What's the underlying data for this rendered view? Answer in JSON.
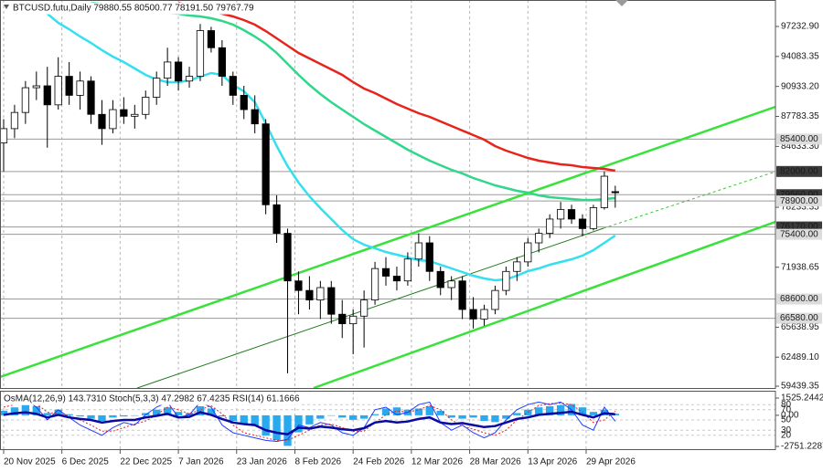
{
  "chart_data": [
    {
      "type": "candlestick",
      "title": "BTCUSD.futu,Daily  79880.55 80500.77 78191.50 79767.79",
      "x": [
        "2025-11-20",
        "2025-11-23",
        "2025-11-26",
        "2025-11-29",
        "2025-12-02",
        "2025-12-05",
        "2025-12-08",
        "2025-12-11",
        "2025-12-14",
        "2025-12-17",
        "2025-12-20",
        "2025-12-23",
        "2025-12-26",
        "2025-12-29",
        "2026-01-01",
        "2026-01-04",
        "2026-01-07",
        "2026-01-10",
        "2026-01-13",
        "2026-01-16",
        "2026-01-19",
        "2026-01-22",
        "2026-01-25",
        "2026-01-28",
        "2026-01-31",
        "2026-02-03",
        "2026-02-06",
        "2026-02-09",
        "2026-02-12",
        "2026-02-15",
        "2026-02-18",
        "2026-02-21",
        "2026-02-24",
        "2026-02-27",
        "2026-03-02",
        "2026-03-05",
        "2026-03-08",
        "2026-03-11",
        "2026-03-14",
        "2026-03-17",
        "2026-03-20",
        "2026-03-23",
        "2026-03-26",
        "2026-03-29",
        "2026-04-01",
        "2026-04-04",
        "2026-04-07",
        "2026-04-10",
        "2026-04-13",
        "2026-04-16",
        "2026-04-19",
        "2026-04-22",
        "2026-04-25",
        "2026-04-28",
        "2026-05-01",
        "2026-05-04",
        "2026-05-07"
      ],
      "open": [
        85000,
        86500,
        88200,
        90800,
        91000,
        89000,
        92000,
        90000,
        91500,
        88000,
        86500,
        88500,
        87800,
        88000,
        89800,
        91800,
        93500,
        91500,
        92000,
        96800,
        95000,
        92000,
        90000,
        88500,
        87000,
        78500,
        75500,
        70500,
        69500,
        68500,
        69800,
        67000,
        66000,
        66800,
        68500,
        71800,
        71000,
        70500,
        72800,
        74500,
        71500,
        69800,
        70500,
        67500,
        66500,
        67500,
        69500,
        71500,
        72500,
        74500,
        75500,
        77000,
        78000,
        77000,
        76000,
        78200,
        79880.55
      ],
      "high": [
        87500,
        89000,
        91500,
        92500,
        93000,
        94000,
        93500,
        92500,
        92000,
        89500,
        89500,
        89800,
        89000,
        90500,
        92500,
        95000,
        94000,
        93000,
        97500,
        97200,
        95800,
        92500,
        91000,
        90000,
        87500,
        79500,
        76000,
        71500,
        71000,
        70500,
        70500,
        68500,
        67500,
        69500,
        72500,
        73000,
        72000,
        73500,
        75500,
        75200,
        72000,
        71000,
        71000,
        68800,
        68000,
        70000,
        72000,
        73000,
        75000,
        76000,
        77500,
        78800,
        78500,
        77500,
        78500,
        82000,
        80500.77
      ],
      "low": [
        82000,
        85500,
        87000,
        89500,
        84500,
        88500,
        89000,
        88500,
        87000,
        84800,
        86000,
        87000,
        86500,
        87500,
        89000,
        91000,
        90500,
        90800,
        91500,
        94500,
        91000,
        89000,
        87500,
        86000,
        77500,
        74500,
        60800,
        67000,
        67500,
        66500,
        66000,
        64500,
        62800,
        63500,
        68000,
        70000,
        69500,
        70000,
        72000,
        70500,
        69000,
        68500,
        66500,
        65500,
        65800,
        67000,
        69000,
        70500,
        72000,
        73500,
        75000,
        76000,
        76500,
        75200,
        75800,
        78000,
        78191.5
      ],
      "close": [
        86500,
        88200,
        90800,
        91000,
        89000,
        92000,
        90000,
        91500,
        88000,
        86500,
        88500,
        87800,
        88000,
        89800,
        91800,
        93500,
        91500,
        92000,
        96800,
        95000,
        92000,
        90000,
        88500,
        87000,
        78500,
        75500,
        70500,
        69500,
        68500,
        69800,
        67000,
        66000,
        66800,
        68500,
        71800,
        71000,
        70500,
        72800,
        74500,
        71500,
        69800,
        70500,
        67500,
        66500,
        67500,
        69500,
        71500,
        72500,
        74500,
        75500,
        77000,
        78000,
        77000,
        76000,
        78200,
        81500,
        79767.79
      ],
      "up_color": "#ffffff",
      "down_color": "#000000",
      "wick_color": "#000000",
      "lines": [
        {
          "color": "#e8231c",
          "values": [
            null,
            null,
            null,
            null,
            null,
            null,
            null,
            null,
            null,
            null,
            null,
            null,
            null,
            null,
            null,
            null,
            99727,
            99439,
            99152,
            98864,
            98576,
            98288,
            97905,
            97425,
            96754,
            95986,
            95219,
            94452,
            93876,
            93301,
            92725,
            92150,
            91382,
            90711,
            90231,
            89656,
            89080,
            88601,
            88121,
            87737,
            87258,
            86778,
            86298,
            85819,
            85339,
            84668,
            84188,
            83805,
            83421,
            83133,
            82941,
            82749,
            82653,
            82462,
            82366,
            82270,
            82078
          ]
        },
        {
          "color": "#2fd78a",
          "values": [
            null,
            null,
            null,
            null,
            null,
            null,
            null,
            null,
            99727,
            99631,
            99535,
            99344,
            99152,
            99056,
            98864,
            98672,
            98576,
            98384,
            98288,
            98097,
            97809,
            97425,
            96850,
            96178,
            95411,
            94452,
            93301,
            92150,
            91094,
            90135,
            89272,
            88505,
            87737,
            86970,
            86298,
            85627,
            84956,
            84284,
            83709,
            83133,
            82653,
            82173,
            81790,
            81310,
            80927,
            80543,
            80255,
            79968,
            79776,
            79488,
            79296,
            79200,
            79104,
            79009,
            79009,
            79104,
            79200
          ]
        },
        {
          "color": "#33e0ef",
          "values": [
            null,
            null,
            null,
            99248,
            98576,
            97617,
            96946,
            96178,
            95507,
            94739,
            94068,
            93491,
            92821,
            92150,
            91670,
            91382,
            91382,
            91574,
            91958,
            92341,
            92150,
            91094,
            90423,
            89272,
            87066,
            84668,
            82558,
            80831,
            79393,
            78145,
            76994,
            75843,
            74884,
            74308,
            73925,
            73541,
            73253,
            72965,
            72678,
            72582,
            72198,
            71815,
            71431,
            71047,
            70759,
            70567,
            70663,
            71047,
            71527,
            71815,
            72198,
            72486,
            72774,
            73158,
            73734,
            74499,
            75268
          ]
        }
      ],
      "levels": [
        {
          "value": 85400,
          "label": "85400.00",
          "color": "#dcdcdc",
          "text_color": "#000000"
        },
        {
          "value": 82000,
          "label": "82000.00",
          "color": "#3a3a3a",
          "text_color": "#ffffff"
        },
        {
          "value": 79560,
          "label": "79560.00",
          "color": "#3a3a3a",
          "text_color": "#ffffff"
        },
        {
          "value": 78900,
          "label": "78900.00",
          "color": "#dcdcdc",
          "text_color": "#000000"
        },
        {
          "value": 76170,
          "label": "76170.00",
          "color": "#3a3a3a",
          "text_color": "#ffffff"
        },
        {
          "value": 75400,
          "label": "75400.00",
          "color": "#dcdcdc",
          "text_color": "#000000"
        },
        {
          "value": 68600,
          "label": "68600.00",
          "color": "#dcdcdc",
          "text_color": "#000000"
        },
        {
          "value": 66580,
          "label": "66580.00",
          "color": "#dcdcdc",
          "text_color": "#000000"
        }
      ],
      "xlim": [
        "2025-11-19",
        "2026-06-20"
      ],
      "xticks": [
        {
          "value": "2025-11-20",
          "label": "20 Nov 2025"
        },
        {
          "value": "2025-12-06",
          "label": "6 Dec 2025"
        },
        {
          "value": "2025-12-22",
          "label": "22 Dec 2025"
        },
        {
          "value": "2026-01-07",
          "label": "7 Jan 2026"
        },
        {
          "value": "2026-01-23",
          "label": "23 Jan 2026"
        },
        {
          "value": "2026-02-08",
          "label": "8 Feb 2026"
        },
        {
          "value": "2026-02-24",
          "label": "24 Feb 2026"
        },
        {
          "value": "2026-03-12",
          "label": "12 Mar 2026"
        },
        {
          "value": "2026-03-28",
          "label": "28 Mar 2026"
        },
        {
          "value": "2026-04-13",
          "label": "13 Apr 2026"
        },
        {
          "value": "2026-04-29",
          "label": "29 Apr 2026"
        }
      ],
      "ylim": [
        59250,
        100015
      ],
      "yticks": [
        {
          "value": 97232.9,
          "label": "97232.90"
        },
        {
          "value": 94083.35,
          "label": "94083.35"
        },
        {
          "value": 90933.2,
          "label": "90933.20"
        },
        {
          "value": 87783.35,
          "label": "87783.35"
        },
        {
          "value": 84633.3,
          "label": "84633.30"
        },
        {
          "value": 78233.35,
          "label": "78233.35"
        },
        {
          "value": 71938.65,
          "label": "71938.65"
        },
        {
          "value": 65638.95,
          "label": "65638.95"
        },
        {
          "value": 62489.1,
          "label": "62489.10"
        },
        {
          "value": 59439.35,
          "label": "59439.35"
        }
      ],
      "grid": true
    },
    {
      "type": "indicator",
      "title": "OsMA(12,26,9) 143.7310  Stoch(5,3,3) 47.2982 67.4235  RSI(14) 61.1666",
      "osma": {
        "color": "#29a9ee",
        "values": [
          400,
          700,
          900,
          800,
          200,
          500,
          100,
          -100,
          -300,
          -500,
          -200,
          -100,
          0,
          200,
          500,
          700,
          300,
          200,
          800,
          600,
          -100,
          -500,
          -700,
          -900,
          -1800,
          -2200,
          -2700,
          -1500,
          -800,
          -300,
          0,
          -200,
          -400,
          -300,
          100,
          600,
          700,
          500,
          600,
          800,
          400,
          -200,
          -300,
          -200,
          -500,
          -600,
          -300,
          200,
          500,
          700,
          800,
          900,
          1000,
          700,
          300,
          500,
          143.731
        ]
      },
      "lines": [
        {
          "axis": "y2",
          "color": "#1e3cff",
          "width": 1,
          "dash": false,
          "values": [
            80,
            85,
            90,
            75,
            50,
            70,
            55,
            40,
            30,
            20,
            35,
            45,
            40,
            60,
            75,
            85,
            55,
            60,
            85,
            75,
            40,
            25,
            20,
            15,
            10,
            8,
            12,
            40,
            35,
            45,
            40,
            25,
            20,
            35,
            70,
            75,
            60,
            65,
            80,
            85,
            45,
            30,
            40,
            25,
            15,
            25,
            50,
            70,
            80,
            85,
            80,
            85,
            70,
            40,
            30,
            75,
            47.2982
          ]
        },
        {
          "axis": "y2",
          "color": "#e0252b",
          "width": 1,
          "dash": true,
          "values": [
            75,
            80,
            85,
            82,
            65,
            62,
            58,
            50,
            40,
            28,
            28,
            35,
            42,
            48,
            60,
            75,
            70,
            62,
            70,
            78,
            62,
            40,
            25,
            20,
            15,
            10,
            10,
            20,
            30,
            40,
            42,
            35,
            28,
            28,
            45,
            60,
            68,
            65,
            70,
            78,
            70,
            50,
            38,
            32,
            25,
            20,
            30,
            50,
            65,
            78,
            82,
            83,
            80,
            65,
            45,
            50,
            67.4235
          ]
        },
        {
          "axis": "y2",
          "color": "#0a0aa0",
          "width": 2.5,
          "dash": false,
          "values": [
            60,
            63,
            65,
            62,
            55,
            60,
            55,
            52,
            50,
            45,
            48,
            50,
            50,
            55,
            58,
            62,
            55,
            56,
            65,
            60,
            52,
            45,
            42,
            40,
            30,
            25,
            22,
            35,
            33,
            37,
            35,
            32,
            30,
            34,
            45,
            48,
            45,
            47,
            52,
            55,
            45,
            42,
            44,
            40,
            36,
            38,
            45,
            52,
            55,
            60,
            62,
            64,
            66,
            60,
            55,
            63,
            61.1666
          ]
        }
      ],
      "ylim": [
        -2751.2287,
        1525.2442
      ],
      "yticks": [
        1525.2442,
        {
          "value": 0,
          "label": "0.00"
        },
        -2751.2287
      ],
      "y2lim": [
        0,
        100
      ],
      "y2ticks": [
        80,
        70,
        50,
        30,
        20
      ]
    }
  ]
}
